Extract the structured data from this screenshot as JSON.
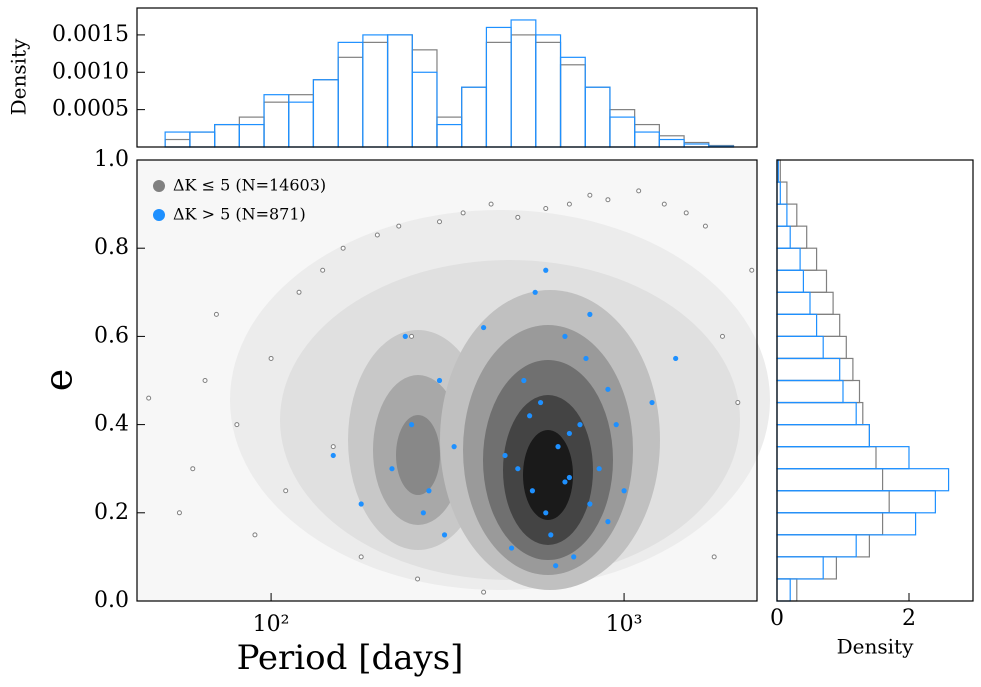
{
  "chart_data": [
    {
      "type": "scatter",
      "xlabel": "Period [days]",
      "ylabel": "e",
      "xlog": true,
      "xlim": [
        41.7,
        2380
      ],
      "ylim": [
        0,
        1
      ],
      "xticks": [
        {
          "value": 100,
          "label": "10²"
        },
        {
          "value": 1000,
          "label": "10³"
        }
      ],
      "yticks": [
        {
          "value": 0,
          "label": "0.0"
        },
        {
          "value": 0.2,
          "label": "0.2"
        },
        {
          "value": 0.4,
          "label": "0.4"
        },
        {
          "value": 0.6,
          "label": "0.6"
        },
        {
          "value": 0.8,
          "label": "0.8"
        },
        {
          "value": 1,
          "label": "1.0"
        }
      ],
      "legend": "upper left",
      "series": [
        {
          "name": "ΔK ≤ 5 (N=14603)",
          "color": "#808080",
          "x": [
            45,
            55,
            60,
            70,
            80,
            90,
            100,
            120,
            140,
            160,
            180,
            200,
            230,
            260,
            300,
            350,
            420,
            500,
            600,
            700,
            800,
            900,
            1100,
            1300,
            1500,
            1700,
            1900,
            2100,
            2300,
            65,
            110,
            150,
            250,
            400,
            1800
          ],
          "y": [
            0.46,
            0.2,
            0.3,
            0.65,
            0.4,
            0.15,
            0.55,
            0.7,
            0.75,
            0.8,
            0.1,
            0.83,
            0.85,
            0.05,
            0.86,
            0.88,
            0.9,
            0.87,
            0.89,
            0.9,
            0.92,
            0.91,
            0.93,
            0.9,
            0.88,
            0.85,
            0.6,
            0.45,
            0.75,
            0.5,
            0.25,
            0.35,
            0.6,
            0.02,
            0.1
          ]
        },
        {
          "name": "ΔK > 5 (N=871)",
          "color": "#1e90ff",
          "x": [
            500,
            550,
            600,
            650,
            700,
            750,
            800,
            850,
            900,
            520,
            580,
            620,
            680,
            720,
            780,
            460,
            480,
            950,
            1000,
            560,
            640,
            700,
            220,
            250,
            270,
            300,
            330,
            240,
            280,
            310,
            1200,
            1400,
            150,
            180,
            600,
            800,
            400,
            900,
            680,
            540
          ],
          "y": [
            0.3,
            0.25,
            0.2,
            0.35,
            0.28,
            0.4,
            0.22,
            0.3,
            0.18,
            0.5,
            0.45,
            0.15,
            0.6,
            0.1,
            0.55,
            0.33,
            0.12,
            0.4,
            0.25,
            0.7,
            0.08,
            0.38,
            0.3,
            0.4,
            0.2,
            0.5,
            0.35,
            0.6,
            0.25,
            0.15,
            0.45,
            0.55,
            0.33,
            0.22,
            0.75,
            0.65,
            0.62,
            0.48,
            0.27,
            0.42
          ]
        }
      ]
    },
    {
      "type": "histogram",
      "ylabel": "Density",
      "xlog": true,
      "xlim": [
        41.7,
        2380
      ],
      "ylim": [
        0,
        0.00186
      ],
      "yticks": [
        0.0005,
        {
          "value": 0.001,
          "label": "0.0010"
        },
        0.0015
      ],
      "bins": [
        50.1,
        58.9,
        69.2,
        81.3,
        95.5,
        112.2,
        131.8,
        154.9,
        182.0,
        213.8,
        251.2,
        295.1,
        346.7,
        407.4,
        478.6,
        562.3,
        660.7,
        776.2,
        912.0,
        1071.5,
        1258.9,
        1479.1,
        1737.8,
        2041.7
      ],
      "series": [
        {
          "color": "#808080",
          "values": [
            0.0001,
            0.0002,
            0.0003,
            0.0004,
            0.0006,
            0.0007,
            0.0009,
            0.0012,
            0.0014,
            0.0015,
            0.0013,
            0.0004,
            0.0008,
            0.0014,
            0.0015,
            0.0014,
            0.0011,
            0.0008,
            0.0005,
            0.0003,
            0.00015,
            6e-05,
            2e-05
          ]
        },
        {
          "color": "#1e90ff",
          "values": [
            0.0002,
            0.0002,
            0.0003,
            0.0003,
            0.0007,
            0.0006,
            0.0009,
            0.0014,
            0.0015,
            0.0015,
            0.001,
            0.0003,
            0.0008,
            0.0016,
            0.0017,
            0.0015,
            0.0012,
            0.0008,
            0.0004,
            0.0002,
            0.0001,
            4e-05,
            1e-05
          ]
        }
      ]
    },
    {
      "type": "histogram",
      "orientation": "horizontal",
      "xlabel": "Density",
      "xlim": [
        0,
        2.97
      ],
      "ylim": [
        0,
        1
      ],
      "xticks": [
        0,
        2
      ],
      "bins": [
        0,
        0.05,
        0.1,
        0.15,
        0.2,
        0.25,
        0.3,
        0.35,
        0.4,
        0.45,
        0.5,
        0.55,
        0.6,
        0.65,
        0.7,
        0.75,
        0.8,
        0.85,
        0.9,
        0.95,
        1
      ],
      "series": [
        {
          "color": "#808080",
          "values": [
            0.3,
            0.9,
            1.4,
            1.6,
            1.7,
            1.6,
            1.5,
            1.4,
            1.3,
            1.25,
            1.15,
            1.05,
            0.95,
            0.85,
            0.75,
            0.6,
            0.45,
            0.3,
            0.15,
            0.05
          ]
        },
        {
          "color": "#1e90ff",
          "values": [
            0.2,
            0.7,
            1.2,
            2.1,
            2.4,
            2.6,
            2.0,
            1.4,
            1.2,
            1.0,
            0.95,
            0.7,
            0.6,
            0.5,
            0.4,
            0.35,
            0.2,
            0.15,
            0.05,
            0.02
          ]
        }
      ]
    }
  ]
}
